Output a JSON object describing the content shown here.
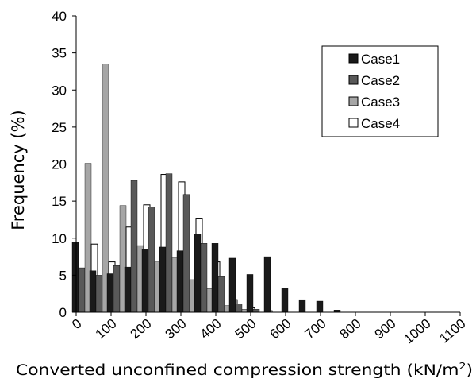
{
  "chart_data": {
    "type": "bar",
    "xlabel": "Converted unconfined compression strength  (kN/m",
    "xlabel_sup": "2",
    "xlabel_end": ")",
    "ylabel": "Frequency  (%)",
    "ylim": [
      0,
      40
    ],
    "yticks": [
      "0",
      "5",
      "10",
      "15",
      "20",
      "25",
      "30",
      "35",
      "40"
    ],
    "xticks": [
      "0",
      "100",
      "200",
      "300",
      "400",
      "500",
      "600",
      "700",
      "800",
      "900",
      "1000",
      "1100"
    ],
    "legend_position": "top-right",
    "categories": [
      "0-50",
      "50-100",
      "100-150",
      "150-200",
      "200-250",
      "250-300",
      "300-350",
      "350-400",
      "400-450",
      "450-500",
      "500-550",
      "550-600",
      "600-650",
      "650-700",
      "700-750",
      "750-800",
      "800-850",
      "850-900",
      "900-950",
      "950-1000",
      "1000-1050",
      "1050-1100"
    ],
    "series": [
      {
        "name": "Case1",
        "color": "#1a1a1a",
        "values": [
          9.5,
          5.6,
          5.2,
          6.1,
          8.5,
          8.8,
          8.3,
          10.5,
          9.3,
          7.3,
          5.1,
          7.5,
          3.3,
          1.7,
          1.5,
          0.3,
          0,
          0,
          0,
          0,
          0,
          0
        ]
      },
      {
        "name": "Case2",
        "color": "#595959",
        "values": [
          6.0,
          5.0,
          6.3,
          17.8,
          14.2,
          18.7,
          15.9,
          9.3,
          4.9,
          1.1,
          0.4,
          0,
          0,
          0,
          0,
          0,
          0,
          0,
          0,
          0,
          0,
          0
        ]
      },
      {
        "name": "Case3",
        "color": "#a6a6a6",
        "values": [
          20.1,
          33.5,
          14.4,
          9.0,
          6.8,
          7.4,
          4.4,
          3.2,
          0.9,
          0.4,
          0,
          0,
          0,
          0,
          0,
          0,
          0,
          0,
          0,
          0,
          0,
          0
        ]
      },
      {
        "name": "Case4",
        "color": "#ffffff",
        "values": [
          9.2,
          6.8,
          11.5,
          14.5,
          18.6,
          17.6,
          12.7,
          6.8,
          1.7,
          0.6,
          0.2,
          0,
          0,
          0,
          0,
          0,
          0,
          0,
          0,
          0,
          0,
          0
        ]
      }
    ]
  }
}
